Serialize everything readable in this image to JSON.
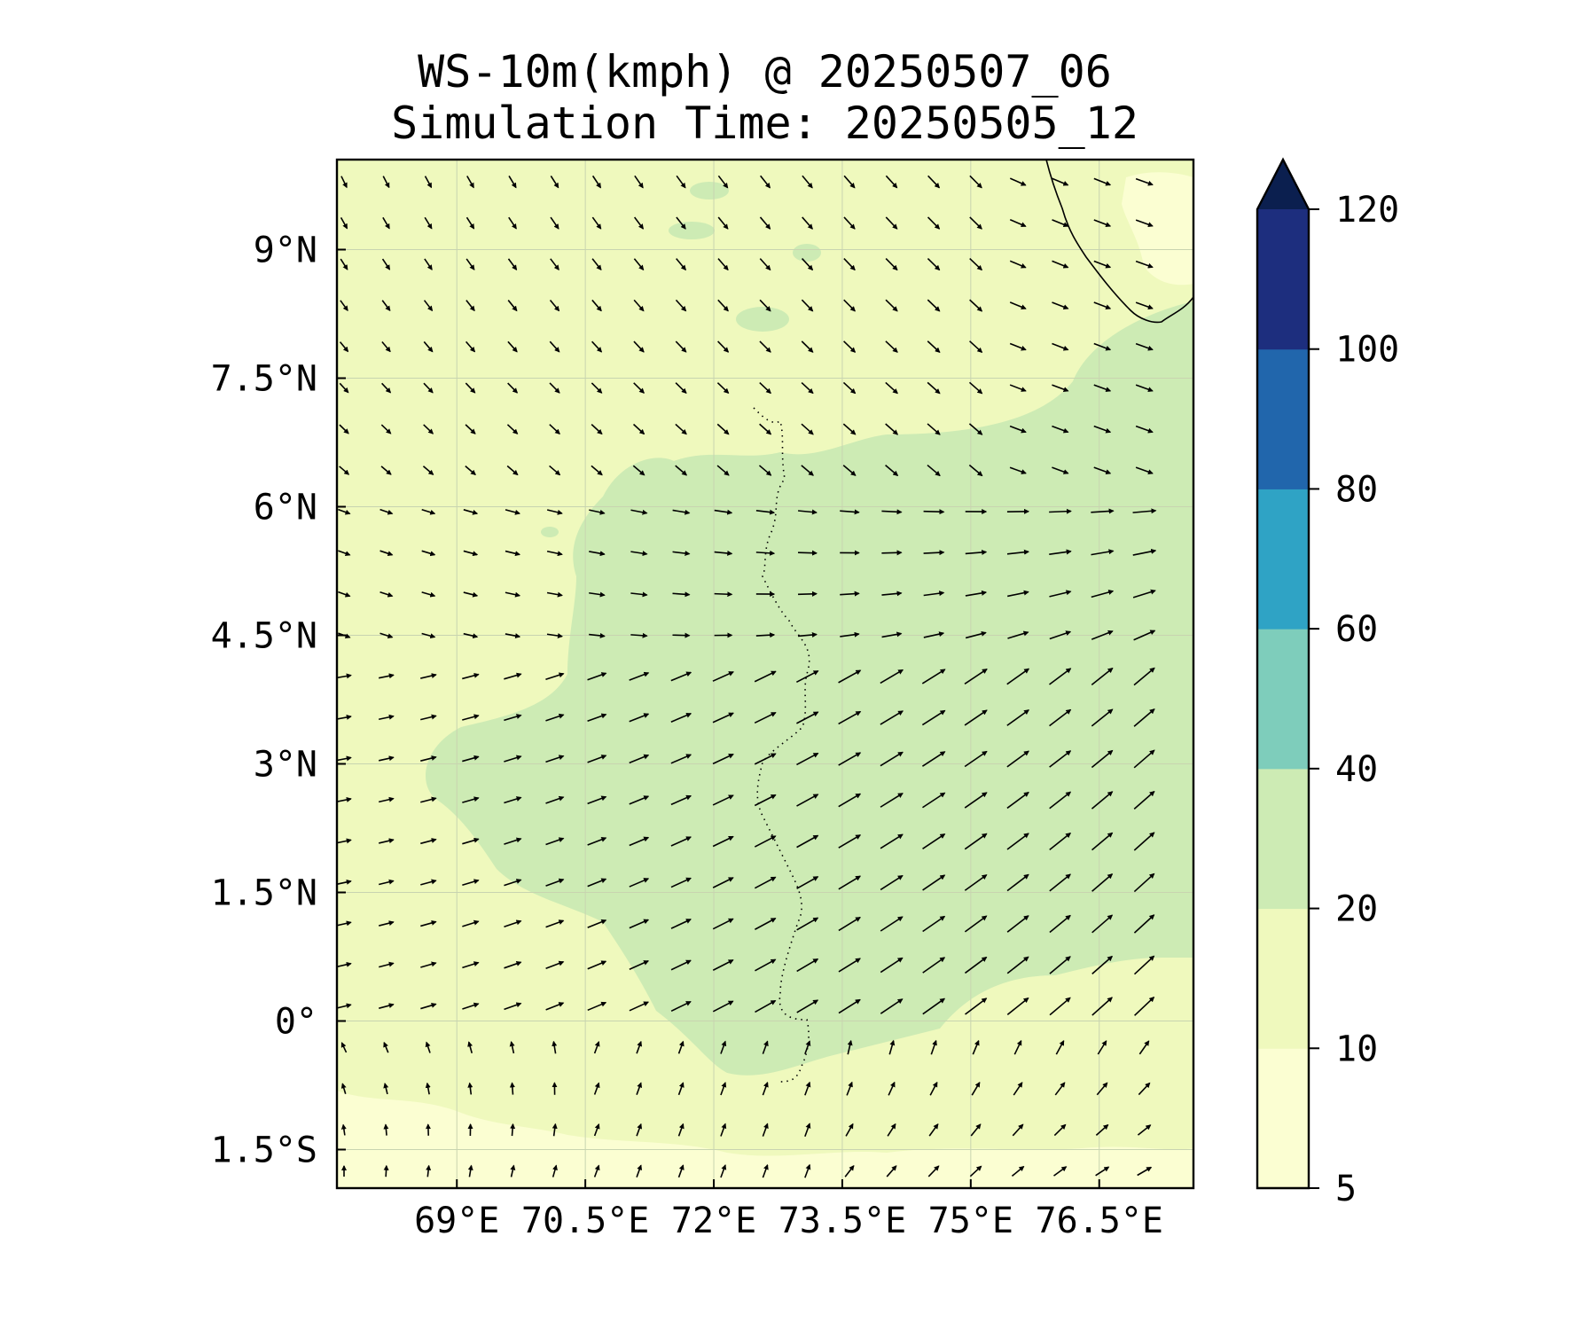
{
  "title": {
    "line1": "WS-10m(kmph) @ 20250507_06",
    "line2": "Simulation Time: 20250505_12"
  },
  "map": {
    "lon_range": [
      67.6,
      77.6
    ],
    "lat_range": [
      -1.95,
      10.05
    ],
    "lon_ticks": [
      {
        "value": 69.0,
        "label": "69°E"
      },
      {
        "value": 70.5,
        "label": "70.5°E"
      },
      {
        "value": 72.0,
        "label": "72°E"
      },
      {
        "value": 73.5,
        "label": "73.5°E"
      },
      {
        "value": 75.0,
        "label": "75°E"
      },
      {
        "value": 76.5,
        "label": "76.5°E"
      }
    ],
    "lat_ticks": [
      {
        "value": 9.0,
        "label": "9°N"
      },
      {
        "value": 7.5,
        "label": "7.5°N"
      },
      {
        "value": 6.0,
        "label": "6°N"
      },
      {
        "value": 4.5,
        "label": "4.5°N"
      },
      {
        "value": 3.0,
        "label": "3°N"
      },
      {
        "value": 1.5,
        "label": "1.5°N"
      },
      {
        "value": 0.0,
        "label": "0°"
      },
      {
        "value": -1.5,
        "label": "1.5°S"
      }
    ],
    "gridlines": true,
    "background_band_color": "#eff9bd",
    "band_20_40_color": "#cdebb4",
    "band_5_10_color": "#fbfed2"
  },
  "colorbar": {
    "levels": [
      5,
      10,
      20,
      40,
      60,
      80,
      100,
      120
    ],
    "labels": [
      "5",
      "10",
      "20",
      "40",
      "60",
      "80",
      "100",
      "120"
    ],
    "colors": [
      "#fbfed2",
      "#eff9bd",
      "#cdebb4",
      "#7ecdbb",
      "#2fa3c5",
      "#2166ac",
      "#1d2e7e"
    ],
    "extend_color": "#0b1f4f",
    "extend": "max"
  }
}
